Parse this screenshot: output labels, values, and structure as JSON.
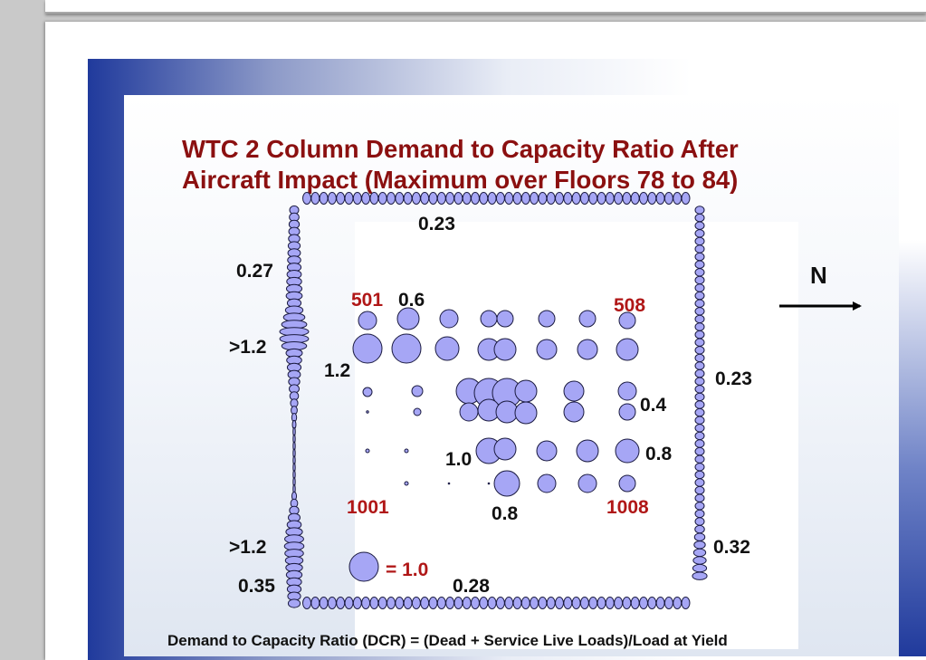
{
  "slide": {
    "title": "WTC 2 Column Demand to Capacity Ratio After\nAircraft Impact (Maximum over Floors 78 to 84)",
    "footer": "Demand to Capacity Ratio (DCR) = (Dead + Service Live Loads)/Load at Yield",
    "compass": "N",
    "colors": {
      "title": "#b01717",
      "column_fill": "#a6a6f5",
      "slide_blue": "#203a9c"
    }
  },
  "labels": {
    "north_face": "0.23",
    "west_upper": "0.27",
    "west_high": ">1.2",
    "core_west": "1.2",
    "col_501": "501",
    "col_501_value": "0.6",
    "col_508": "508",
    "east_face": "0.23",
    "core_mid": "0.4",
    "core_center": "1.0",
    "core_east": "0.8",
    "col_1001": "1001",
    "core_south": "0.8",
    "col_1008": "1008",
    "west_low": ">1.2",
    "southeast": "0.32",
    "southwest": "0.35",
    "south_face": "0.28",
    "legend_text": "= 1.0"
  }
}
